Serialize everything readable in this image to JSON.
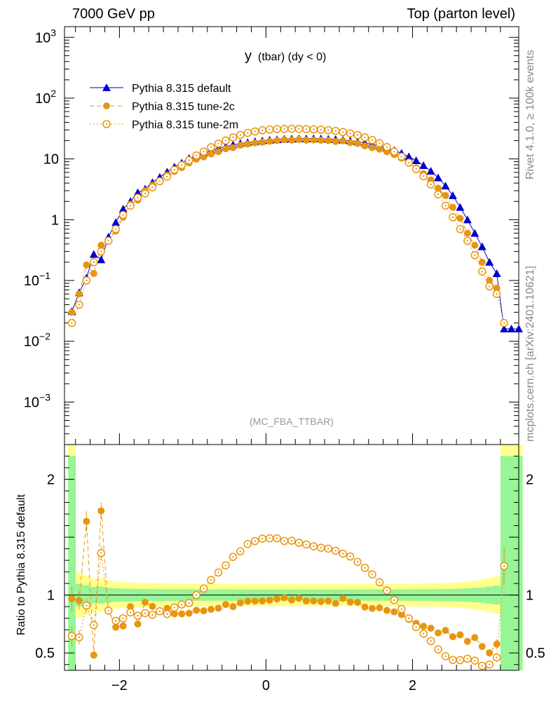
{
  "header": {
    "left": "7000 GeV pp",
    "right": "Top (parton level)"
  },
  "side_labels": {
    "rivet": "Rivet 4.1.0, ≥ 100k events",
    "mcplots": "mcplots.cern.ch [arXiv:2401.10621]"
  },
  "chart_data": {
    "type": "scatter",
    "title": "y (tbar) (dy < 0)",
    "title_main": "y",
    "title_sub": "(tbar) (dy < 0)",
    "watermark": "(MC_FBA_TTBAR)",
    "xlim": [
      -2.75,
      3.45
    ],
    "ylim_log": [
      0.0002,
      1500
    ],
    "ratio_ylim": [
      0.35,
      2.3
    ],
    "ratio_ylabel": "Ratio to Pythia 8.315 default",
    "x_ticks": [
      -2,
      0,
      2
    ],
    "x_tick_labels": [
      "−2",
      "0",
      "2"
    ],
    "y_ticks": [
      {
        "v": 1000,
        "base": "10",
        "exp": "3"
      },
      {
        "v": 100,
        "base": "10",
        "exp": "2"
      },
      {
        "v": 10,
        "base": "10",
        "exp": ""
      },
      {
        "v": 1,
        "base": "1",
        "exp": ""
      },
      {
        "v": 0.1,
        "base": "10",
        "exp": "−1"
      },
      {
        "v": 0.01,
        "base": "10",
        "exp": "−2"
      },
      {
        "v": 0.001,
        "base": "10",
        "exp": "−3"
      }
    ],
    "ratio_ticks": [
      {
        "v": 0.5,
        "label": "0.5"
      },
      {
        "v": 1,
        "label": "1"
      },
      {
        "v": 2,
        "label": "2"
      }
    ],
    "x_start": -2.65,
    "bin_width": 0.1,
    "series": [
      {
        "name": "Pythia 8.315 default",
        "color": "#0000cc",
        "marker": "triangle",
        "style": "solid",
        "values": [
          0.031,
          0.063,
          0.11,
          0.27,
          0.22,
          0.52,
          0.9,
          1.5,
          2.0,
          2.8,
          3.2,
          4.1,
          5.0,
          6.1,
          7.4,
          8.6,
          10.2,
          11.4,
          12.5,
          13.8,
          14.9,
          16.0,
          17.0,
          18.0,
          18.6,
          19.3,
          19.9,
          20.4,
          20.8,
          21.2,
          21.3,
          21.5,
          21.5,
          21.6,
          21.5,
          21.2,
          20.9,
          20.4,
          19.8,
          19.2,
          18.3,
          17.3,
          16.3,
          15.1,
          13.8,
          12.4,
          10.9,
          9.4,
          7.8,
          6.3,
          4.9,
          3.6,
          2.5,
          1.6,
          1.0,
          0.6,
          0.36,
          0.2,
          0.13,
          0.016,
          0.016,
          0.016
        ]
      },
      {
        "name": "Pythia 8.315 tune-2c",
        "color": "#e8950f",
        "marker": "circle",
        "style": "dashed",
        "values": [
          0.03,
          0.06,
          0.18,
          0.13,
          0.38,
          0.45,
          0.65,
          1.1,
          1.8,
          2.1,
          3.0,
          3.7,
          4.3,
          5.4,
          6.2,
          7.2,
          8.6,
          9.9,
          10.8,
          12.1,
          13.2,
          14.7,
          15.3,
          16.8,
          17.6,
          18.3,
          18.9,
          19.5,
          20.1,
          20.7,
          20.4,
          20.9,
          20.4,
          20.5,
          20.3,
          20.1,
          19.4,
          19.8,
          18.6,
          18.0,
          16.4,
          15.3,
          14.5,
          13.1,
          11.8,
          10.3,
          8.6,
          7.1,
          5.7,
          4.5,
          3.3,
          2.5,
          1.6,
          1.05,
          0.6,
          0.38,
          0.2,
          0.1,
          0.075,
          0.0,
          0.0,
          0.0
        ]
      },
      {
        "name": "Pythia 8.315 tune-2m",
        "color": "#e8950f",
        "marker": "open-circle",
        "style": "dotted",
        "values": [
          0.02,
          0.04,
          0.1,
          0.2,
          0.3,
          0.45,
          0.7,
          1.2,
          1.7,
          2.3,
          2.7,
          3.4,
          4.3,
          5.1,
          6.6,
          7.9,
          9.5,
          11.4,
          13.2,
          15.6,
          17.8,
          20.1,
          22.6,
          24.8,
          26.8,
          28.3,
          29.6,
          30.4,
          31.0,
          31.1,
          31.3,
          31.2,
          30.9,
          30.7,
          30.3,
          29.7,
          28.9,
          27.7,
          26.4,
          24.7,
          22.6,
          20.4,
          18.1,
          15.7,
          13.2,
          10.9,
          8.7,
          6.8,
          5.2,
          3.8,
          2.6,
          1.7,
          1.1,
          0.7,
          0.45,
          0.26,
          0.14,
          0.08,
          0.06,
          0.02,
          0.0,
          0.0
        ]
      }
    ]
  }
}
